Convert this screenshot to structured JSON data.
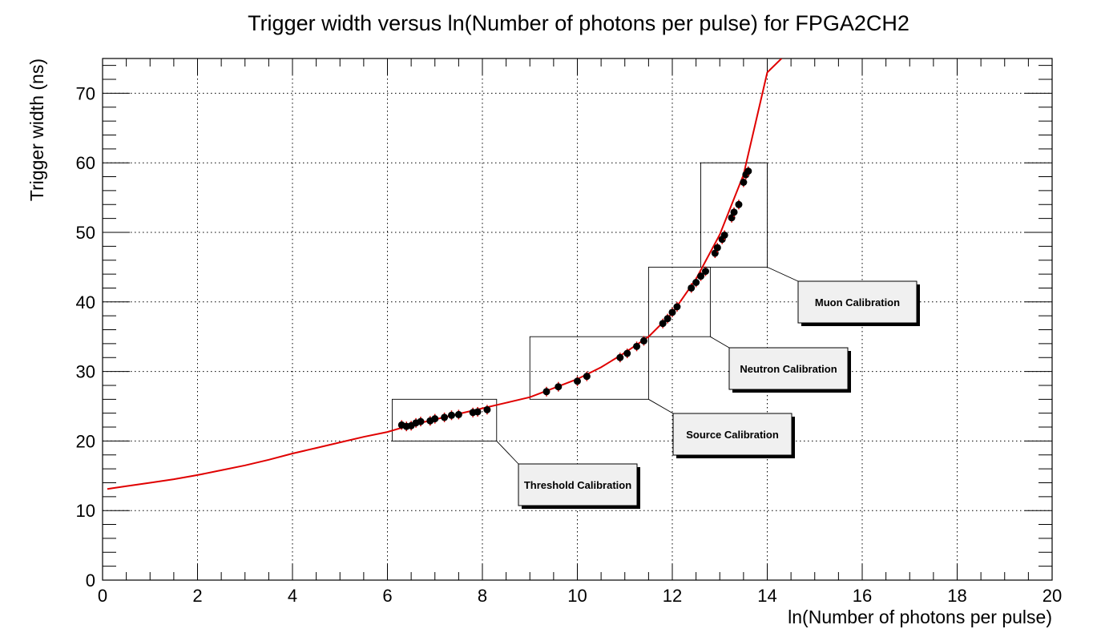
{
  "chart_data": {
    "type": "scatter",
    "title": "Trigger width versus ln(Number of photons per pulse) for FPGA2CH2",
    "xlabel": "ln(Number of photons per pulse)",
    "ylabel": "Trigger width (ns)",
    "xlim": [
      0,
      20
    ],
    "ylim": [
      0,
      75
    ],
    "xticks": [
      "0",
      "2",
      "4",
      "6",
      "8",
      "10",
      "12",
      "14",
      "16",
      "18",
      "20"
    ],
    "yticks": [
      "0",
      "10",
      "20",
      "30",
      "40",
      "50",
      "60",
      "70"
    ],
    "grid": true,
    "fit_curve": {
      "color": "#e00000",
      "x": [
        0.1,
        0.5,
        1.0,
        1.5,
        2.0,
        2.5,
        3.0,
        3.5,
        4.0,
        4.5,
        5.0,
        5.5,
        6.0,
        6.5,
        7.0,
        7.5,
        8.0,
        8.5,
        9.0,
        9.5,
        10.0,
        10.5,
        11.0,
        11.5,
        12.0,
        12.5,
        13.0,
        13.5,
        14.0,
        14.3
      ],
      "y": [
        13.1,
        13.5,
        14.0,
        14.5,
        15.1,
        15.8,
        16.5,
        17.3,
        18.2,
        19.0,
        19.8,
        20.6,
        21.3,
        22.3,
        23.1,
        23.9,
        24.7,
        25.5,
        26.3,
        27.6,
        28.9,
        30.6,
        32.7,
        35.0,
        38.4,
        43.3,
        49.7,
        58.3,
        73.0,
        75.0
      ]
    },
    "series": [
      {
        "name": "Threshold Calibration",
        "points": [
          [
            6.3,
            22.3
          ],
          [
            6.4,
            22.1
          ],
          [
            6.5,
            22.2
          ],
          [
            6.6,
            22.6
          ],
          [
            6.7,
            22.8
          ],
          [
            6.9,
            22.9
          ],
          [
            7.0,
            23.2
          ],
          [
            7.2,
            23.4
          ],
          [
            7.35,
            23.7
          ],
          [
            7.5,
            23.8
          ],
          [
            7.8,
            24.1
          ],
          [
            7.9,
            24.2
          ],
          [
            8.1,
            24.5
          ]
        ]
      },
      {
        "name": "Source Calibration",
        "points": [
          [
            9.35,
            27.1
          ],
          [
            9.6,
            27.8
          ],
          [
            10.0,
            28.6
          ],
          [
            10.2,
            29.3
          ],
          [
            10.9,
            32.0
          ],
          [
            11.05,
            32.6
          ],
          [
            11.25,
            33.6
          ],
          [
            11.4,
            34.4
          ]
        ]
      },
      {
        "name": "Neutron Calibration",
        "points": [
          [
            11.8,
            36.9
          ],
          [
            11.9,
            37.6
          ],
          [
            12.0,
            38.5
          ],
          [
            12.1,
            39.3
          ],
          [
            12.4,
            42.0
          ],
          [
            12.5,
            42.8
          ],
          [
            12.6,
            43.7
          ],
          [
            12.7,
            44.4
          ]
        ]
      },
      {
        "name": "Muon Calibration",
        "points": [
          [
            12.9,
            47.0
          ],
          [
            12.95,
            47.8
          ],
          [
            13.05,
            49.0
          ],
          [
            13.1,
            49.6
          ],
          [
            13.25,
            52.1
          ],
          [
            13.3,
            52.9
          ],
          [
            13.4,
            54.0
          ],
          [
            13.5,
            57.2
          ],
          [
            13.55,
            58.3
          ],
          [
            13.6,
            58.8
          ]
        ]
      }
    ],
    "regions": [
      {
        "name": "Threshold Calibration",
        "x_range": [
          6.1,
          8.3
        ],
        "y_range": [
          20,
          26
        ]
      },
      {
        "name": "Source Calibration",
        "x_range": [
          9.0,
          11.5
        ],
        "y_range": [
          26,
          35
        ]
      },
      {
        "name": "Neutron Calibration",
        "x_range": [
          11.5,
          12.8
        ],
        "y_range": [
          35,
          45
        ]
      },
      {
        "name": "Muon Calibration",
        "x_range": [
          12.6,
          14.0
        ],
        "y_range": [
          45,
          60
        ]
      }
    ],
    "annotations": [
      "Threshold Calibration",
      "Source Calibration",
      "Neutron Calibration",
      "Muon Calibration"
    ],
    "colors": {
      "curve": "#e00000",
      "points": "#000000",
      "label_box": "#f0f0f0"
    }
  }
}
